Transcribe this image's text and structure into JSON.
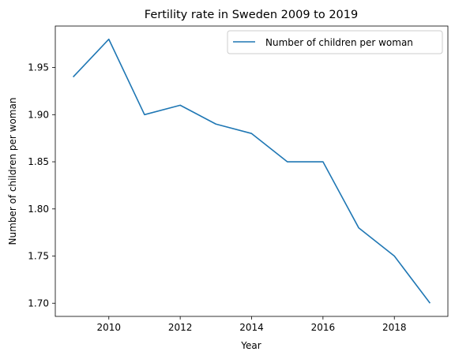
{
  "chart_data": {
    "type": "line",
    "title": "Fertility rate in Sweden 2009 to 2019",
    "xlabel": "Year",
    "ylabel": "Number of children per woman",
    "x": [
      2009,
      2010,
      2011,
      2012,
      2013,
      2014,
      2015,
      2016,
      2017,
      2018,
      2019
    ],
    "series": [
      {
        "name": "Number of children per woman",
        "values": [
          1.94,
          1.98,
          1.9,
          1.91,
          1.89,
          1.88,
          1.85,
          1.85,
          1.78,
          1.75,
          1.7
        ],
        "color": "#1f77b4"
      }
    ],
    "xticks": [
      2010,
      2012,
      2014,
      2016,
      2018
    ],
    "xtick_labels": [
      "2010",
      "2012",
      "2014",
      "2016",
      "2018"
    ],
    "yticks": [
      1.7,
      1.75,
      1.8,
      1.85,
      1.9,
      1.95
    ],
    "ytick_labels": [
      "1.70",
      "1.75",
      "1.80",
      "1.85",
      "1.90",
      "1.95"
    ],
    "xlim": [
      2008.5,
      2019.5
    ],
    "ylim": [
      1.686,
      1.994
    ],
    "grid": false,
    "legend_position": "upper right"
  }
}
